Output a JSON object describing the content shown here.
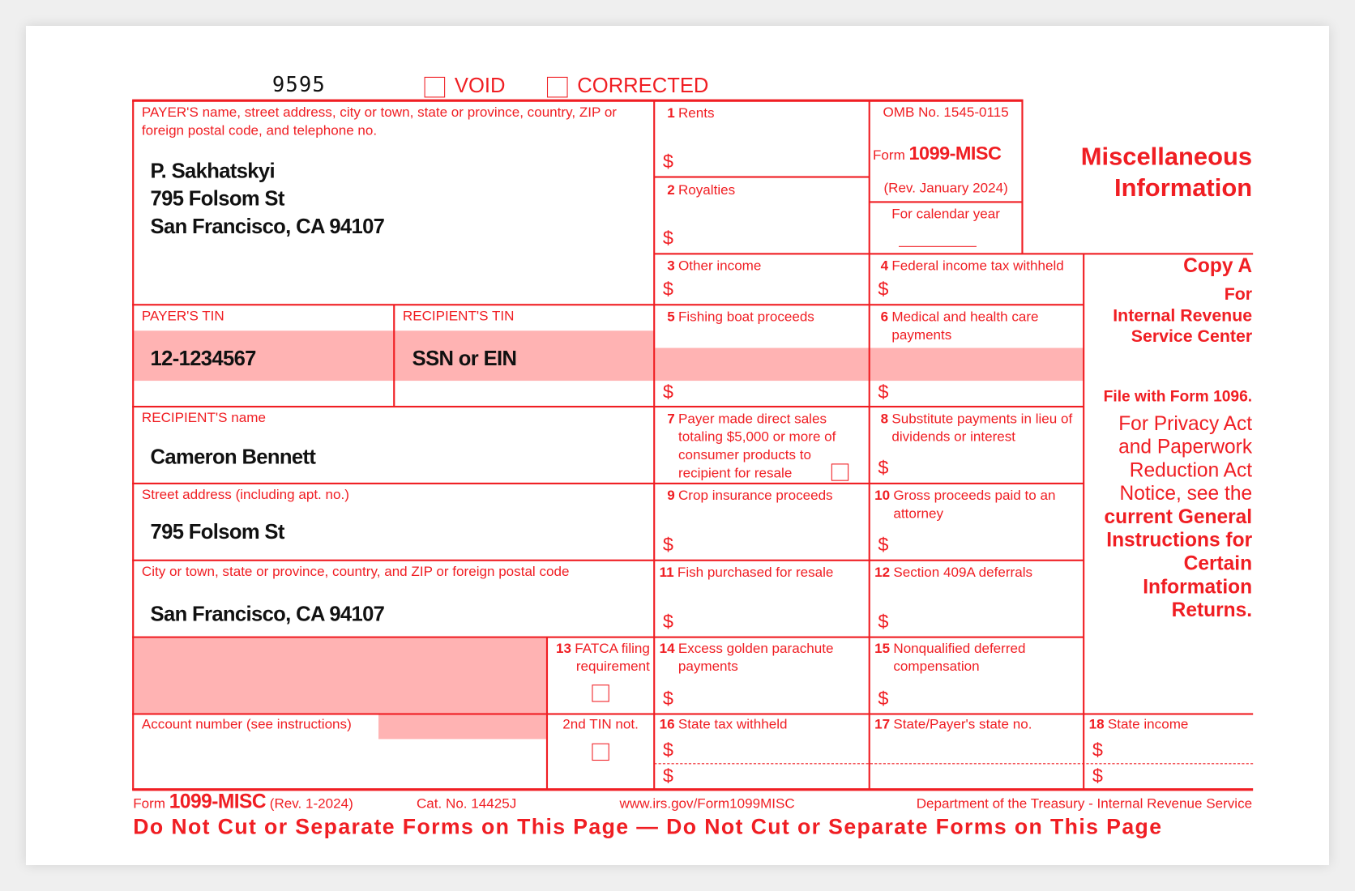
{
  "header": {
    "form_code": "9595",
    "void_label": "VOID",
    "corrected_label": "CORRECTED",
    "void_checked": false,
    "corrected_checked": false
  },
  "payer": {
    "label": "PAYER'S name, street address, city or town, state or province, country, ZIP or foreign postal code, and telephone no.",
    "name": "P. Sakhatskyi",
    "street": "795 Folsom St",
    "city": "San Francisco, CA 94107"
  },
  "payer_tin": {
    "label": "PAYER'S TIN",
    "value": "12-1234567"
  },
  "recipient_tin": {
    "label": "RECIPIENT'S TIN",
    "value": "SSN or EIN"
  },
  "recipient_name": {
    "label": "RECIPIENT'S name",
    "value": "Cameron Bennett"
  },
  "street": {
    "label": "Street address (including apt. no.)",
    "value": "795 Folsom St"
  },
  "city": {
    "label": "City or town, state or province, country, and ZIP or foreign postal code",
    "value": "San Francisco, CA 94107"
  },
  "account": {
    "label": "Account number (see instructions)"
  },
  "tin2": {
    "label": "2nd TIN not.",
    "checked": false
  },
  "omb": {
    "number": "OMB No. 1545-0115",
    "form_prefix": "Form",
    "form_name": "1099-MISC",
    "rev": "(Rev. January 2024)",
    "calendar_year_label": "For calendar year"
  },
  "currency": "$",
  "boxes": [
    {
      "num": "1",
      "label": "Rents"
    },
    {
      "num": "2",
      "label": "Royalties"
    },
    {
      "num": "3",
      "label": "Other income"
    },
    {
      "num": "4",
      "label": "Federal income tax withheld"
    },
    {
      "num": "5",
      "label": "Fishing boat proceeds"
    },
    {
      "num": "6",
      "label": "Medical and health care payments"
    },
    {
      "num": "7",
      "label": "Payer made direct sales totaling $5,000 or more of consumer products to recipient for resale",
      "checked": false
    },
    {
      "num": "8",
      "label": "Substitute payments in lieu of dividends or interest"
    },
    {
      "num": "9",
      "label": "Crop insurance proceeds"
    },
    {
      "num": "10",
      "label": "Gross proceeds paid to an attorney"
    },
    {
      "num": "11",
      "label": "Fish purchased for resale"
    },
    {
      "num": "12",
      "label": "Section 409A deferrals"
    },
    {
      "num": "13",
      "label": "FATCA filing requirement",
      "checked": false
    },
    {
      "num": "14",
      "label": "Excess golden parachute payments"
    },
    {
      "num": "15",
      "label": "Nonqualified deferred compensation"
    },
    {
      "num": "16",
      "label": "State tax withheld"
    },
    {
      "num": "17",
      "label": "State/Payer's state no."
    },
    {
      "num": "18",
      "label": "State income"
    }
  ],
  "sidebar": {
    "title1": "Miscellaneous",
    "title2": "Information",
    "copy": "Copy A",
    "for": "For",
    "irs1": "Internal Revenue",
    "irs2": "Service Center",
    "file_with": "File with Form 1096.",
    "privacy": [
      "For Privacy Act",
      "and Paperwork",
      "Reduction Act",
      "Notice, see the"
    ],
    "instructions": [
      "current General",
      "Instructions for",
      "Certain",
      "Information",
      "Returns."
    ]
  },
  "footer": {
    "form_prefix": "Form",
    "form_name": "1099-MISC",
    "rev": "(Rev. 1-2024)",
    "cat": "Cat. No. 14425J",
    "url": "www.irs.gov/Form1099MISC",
    "dept": "Department of the Treasury - Internal Revenue Service",
    "warning": "Do Not Cut or Separate Forms on This Page — Do Not Cut or Separate Forms on This Page"
  },
  "colors": {
    "form_red": "#f01e23",
    "shade": "#ffb3b3"
  }
}
